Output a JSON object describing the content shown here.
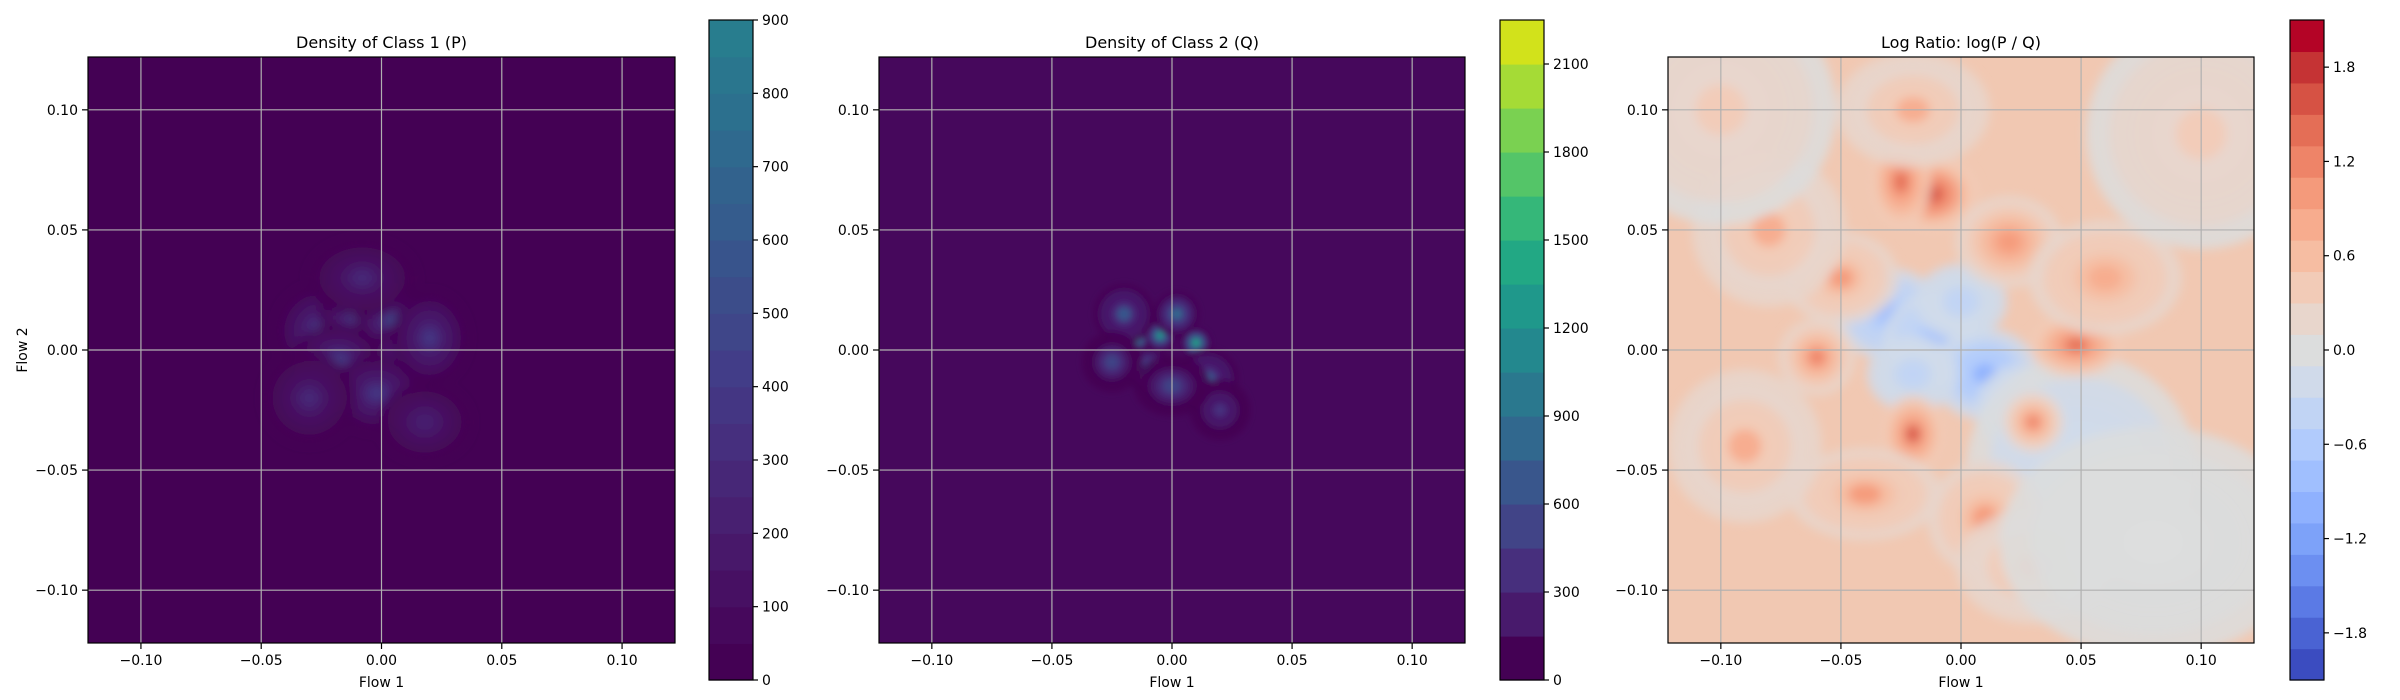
{
  "chart_data": [
    {
      "type": "heatmap",
      "title": "Density of Class 1 (P)",
      "xlabel": "Flow 1",
      "ylabel": "Flow 2",
      "xlim": [
        -0.122,
        0.122
      ],
      "ylim": [
        -0.122,
        0.122
      ],
      "xticks": [
        -0.1,
        -0.05,
        0.0,
        0.05,
        0.1
      ],
      "xtick_labels": [
        "−0.10",
        "−0.05",
        "0.00",
        "0.05",
        "0.10"
      ],
      "yticks": [
        -0.1,
        -0.05,
        0.0,
        0.05,
        0.1
      ],
      "ytick_labels": [
        "−0.10",
        "−0.05",
        "0.00",
        "0.05",
        "0.10"
      ],
      "grid": true,
      "colormap": "viridis",
      "background_color": "#440154",
      "colorbar": {
        "min": 0,
        "max": 900,
        "ticks": [
          0,
          100,
          200,
          300,
          400,
          500,
          600,
          700,
          800,
          900
        ],
        "tick_labels": [
          "0",
          "100",
          "200",
          "300",
          "400",
          "500",
          "600",
          "700",
          "800",
          "900"
        ],
        "levels": 18,
        "colors": [
          "#440154",
          "#46085c",
          "#471063",
          "#48186a",
          "#482071",
          "#472777",
          "#462f7e",
          "#443683",
          "#423d88",
          "#3f4689",
          "#3c4d8a",
          "#38548c",
          "#355c8d",
          "#32628d",
          "#2f698e",
          "#2c708e",
          "#2a768e",
          "#287d8e"
        ]
      },
      "density_blobs": [
        {
          "x": -0.025,
          "y": 0.008,
          "value": 420,
          "rx": 0.012,
          "ry": 0.012
        },
        {
          "x": -0.01,
          "y": 0.015,
          "value": 480,
          "rx": 0.01,
          "ry": 0.01
        },
        {
          "x": 0.005,
          "y": 0.012,
          "value": 450,
          "rx": 0.01,
          "ry": 0.01
        },
        {
          "x": -0.018,
          "y": -0.005,
          "value": 400,
          "rx": 0.012,
          "ry": 0.01
        },
        {
          "x": 0.01,
          "y": -0.005,
          "value": 460,
          "rx": 0.01,
          "ry": 0.01
        },
        {
          "x": -0.002,
          "y": -0.018,
          "value": 380,
          "rx": 0.012,
          "ry": 0.01
        },
        {
          "x": 0.02,
          "y": 0.005,
          "value": 360,
          "rx": 0.01,
          "ry": 0.012
        },
        {
          "x": -0.03,
          "y": -0.02,
          "value": 260,
          "rx": 0.012,
          "ry": 0.012
        },
        {
          "x": 0.018,
          "y": -0.03,
          "value": 240,
          "rx": 0.012,
          "ry": 0.01
        },
        {
          "x": -0.008,
          "y": 0.03,
          "value": 250,
          "rx": 0.014,
          "ry": 0.01
        }
      ]
    },
    {
      "type": "heatmap",
      "title": "Density of Class 2 (Q)",
      "xlabel": "Flow 1",
      "ylabel": "",
      "xlim": [
        -0.122,
        0.122
      ],
      "ylim": [
        -0.122,
        0.122
      ],
      "xticks": [
        -0.1,
        -0.05,
        0.0,
        0.05,
        0.1
      ],
      "xtick_labels": [
        "−0.10",
        "−0.05",
        "0.00",
        "0.05",
        "0.10"
      ],
      "yticks": [
        -0.1,
        -0.05,
        0.0,
        0.05,
        0.1
      ],
      "ytick_labels": [
        "−0.10",
        "−0.05",
        "0.00",
        "0.05",
        "0.10"
      ],
      "grid": true,
      "colormap": "viridis",
      "background_color": "#46085c",
      "colorbar": {
        "min": 0,
        "max": 2250,
        "ticks": [
          0,
          300,
          600,
          900,
          1200,
          1500,
          1800,
          2100
        ],
        "tick_labels": [
          "0",
          "300",
          "600",
          "900",
          "1200",
          "1500",
          "1800",
          "2100"
        ],
        "levels": 15,
        "colors": [
          "#440154",
          "#481a6c",
          "#472f7d",
          "#414487",
          "#39568c",
          "#31688e",
          "#2a788e",
          "#23888e",
          "#1f988b",
          "#22a884",
          "#35b779",
          "#54c568",
          "#7ad151",
          "#a5db36",
          "#d2e21b"
        ]
      },
      "density_blobs": [
        {
          "x": -0.015,
          "y": 0.005,
          "value": 1500,
          "rx": 0.004,
          "ry": 0.004
        },
        {
          "x": -0.005,
          "y": 0.006,
          "value": 1300,
          "rx": 0.004,
          "ry": 0.004
        },
        {
          "x": 0.01,
          "y": 0.003,
          "value": 1400,
          "rx": 0.004,
          "ry": 0.004
        },
        {
          "x": -0.01,
          "y": -0.008,
          "value": 900,
          "rx": 0.006,
          "ry": 0.006
        },
        {
          "x": 0.002,
          "y": 0.015,
          "value": 800,
          "rx": 0.006,
          "ry": 0.006
        },
        {
          "x": -0.02,
          "y": 0.015,
          "value": 600,
          "rx": 0.008,
          "ry": 0.008
        },
        {
          "x": 0.015,
          "y": -0.012,
          "value": 600,
          "rx": 0.008,
          "ry": 0.008
        },
        {
          "x": -0.025,
          "y": -0.005,
          "value": 500,
          "rx": 0.008,
          "ry": 0.008
        },
        {
          "x": 0.02,
          "y": -0.025,
          "value": 420,
          "rx": 0.008,
          "ry": 0.008
        },
        {
          "x": 0.0,
          "y": -0.015,
          "value": 500,
          "rx": 0.01,
          "ry": 0.008
        }
      ]
    },
    {
      "type": "heatmap",
      "title": "Log Ratio: log(P / Q)",
      "xlabel": "Flow 1",
      "ylabel": "",
      "xlim": [
        -0.122,
        0.122
      ],
      "ylim": [
        -0.122,
        0.122
      ],
      "xticks": [
        -0.1,
        -0.05,
        0.0,
        0.05,
        0.1
      ],
      "xtick_labels": [
        "−0.10",
        "−0.05",
        "0.00",
        "0.05",
        "0.10"
      ],
      "yticks": [
        -0.1,
        -0.05,
        0.0,
        0.05,
        0.1
      ],
      "ytick_labels": [
        "−0.10",
        "−0.05",
        "0.00",
        "0.05",
        "0.10"
      ],
      "grid": true,
      "colormap": "coolwarm",
      "background_color": "#f1c8b2",
      "colorbar": {
        "min": -2.1,
        "max": 2.1,
        "ticks": [
          -1.8,
          -1.2,
          -0.6,
          0.0,
          0.6,
          1.2,
          1.8
        ],
        "tick_labels": [
          "−1.8",
          "−1.2",
          "−0.6",
          "0.0",
          "0.6",
          "1.2",
          "1.8"
        ],
        "levels": 21,
        "colors": [
          "#3b4cc0",
          "#4a63d3",
          "#5b7ae5",
          "#6c8ff1",
          "#7da2f9",
          "#8fb1fe",
          "#a0bffe",
          "#b1cbfc",
          "#c1d4f4",
          "#d0daea",
          "#dcdddd",
          "#e8d6cc",
          "#f2cbb7",
          "#f6bda2",
          "#f7ac8e",
          "#f49a7b",
          "#ee8468",
          "#e46e56",
          "#d65244",
          "#c53334",
          "#b40426"
        ]
      },
      "ratio_blobs": [
        {
          "x": -0.03,
          "y": 0.015,
          "value": -0.9,
          "rx": 0.014,
          "ry": 0.012
        },
        {
          "x": -0.01,
          "y": 0.005,
          "value": -0.8,
          "rx": 0.014,
          "ry": 0.012
        },
        {
          "x": 0.01,
          "y": -0.01,
          "value": -1.0,
          "rx": 0.014,
          "ry": 0.012
        },
        {
          "x": 0.025,
          "y": -0.025,
          "value": -0.7,
          "rx": 0.012,
          "ry": 0.012
        },
        {
          "x": 0.05,
          "y": -0.05,
          "value": -0.3,
          "rx": 0.03,
          "ry": 0.03
        },
        {
          "x": -0.02,
          "y": -0.01,
          "value": -0.5,
          "rx": 0.012,
          "ry": 0.01
        },
        {
          "x": 0.0,
          "y": 0.02,
          "value": -0.5,
          "rx": 0.012,
          "ry": 0.01
        },
        {
          "x": -0.012,
          "y": 0.065,
          "value": 1.7,
          "rx": 0.012,
          "ry": 0.01
        },
        {
          "x": -0.025,
          "y": 0.07,
          "value": 1.4,
          "rx": 0.008,
          "ry": 0.012
        },
        {
          "x": -0.02,
          "y": -0.035,
          "value": 1.5,
          "rx": 0.008,
          "ry": 0.01
        },
        {
          "x": 0.048,
          "y": 0.002,
          "value": 1.3,
          "rx": 0.012,
          "ry": 0.008
        },
        {
          "x": -0.06,
          "y": -0.003,
          "value": 1.1,
          "rx": 0.01,
          "ry": 0.01
        },
        {
          "x": 0.03,
          "y": -0.03,
          "value": 1.1,
          "rx": 0.008,
          "ry": 0.008
        },
        {
          "x": -0.05,
          "y": 0.03,
          "value": 0.9,
          "rx": 0.015,
          "ry": 0.012
        },
        {
          "x": 0.02,
          "y": 0.045,
          "value": 1.0,
          "rx": 0.014,
          "ry": 0.012
        },
        {
          "x": -0.04,
          "y": -0.06,
          "value": 0.9,
          "rx": 0.02,
          "ry": 0.012
        },
        {
          "x": 0.01,
          "y": -0.07,
          "value": 0.9,
          "rx": 0.015,
          "ry": 0.015
        },
        {
          "x": 0.06,
          "y": 0.03,
          "value": 0.8,
          "rx": 0.02,
          "ry": 0.015
        },
        {
          "x": -0.08,
          "y": 0.05,
          "value": 0.7,
          "rx": 0.02,
          "ry": 0.02
        },
        {
          "x": -0.09,
          "y": -0.04,
          "value": 0.7,
          "rx": 0.02,
          "ry": 0.02
        },
        {
          "x": -0.02,
          "y": 0.1,
          "value": 0.7,
          "rx": 0.02,
          "ry": 0.015
        },
        {
          "x": 0.03,
          "y": -0.09,
          "value": 0.6,
          "rx": 0.02,
          "ry": 0.015
        },
        {
          "x": 0.08,
          "y": -0.08,
          "value": 0.0,
          "rx": 0.04,
          "ry": 0.03
        },
        {
          "x": 0.1,
          "y": 0.09,
          "value": 0.3,
          "rx": 0.03,
          "ry": 0.03
        },
        {
          "x": -0.1,
          "y": 0.1,
          "value": 0.3,
          "rx": 0.03,
          "ry": 0.03
        }
      ]
    }
  ]
}
